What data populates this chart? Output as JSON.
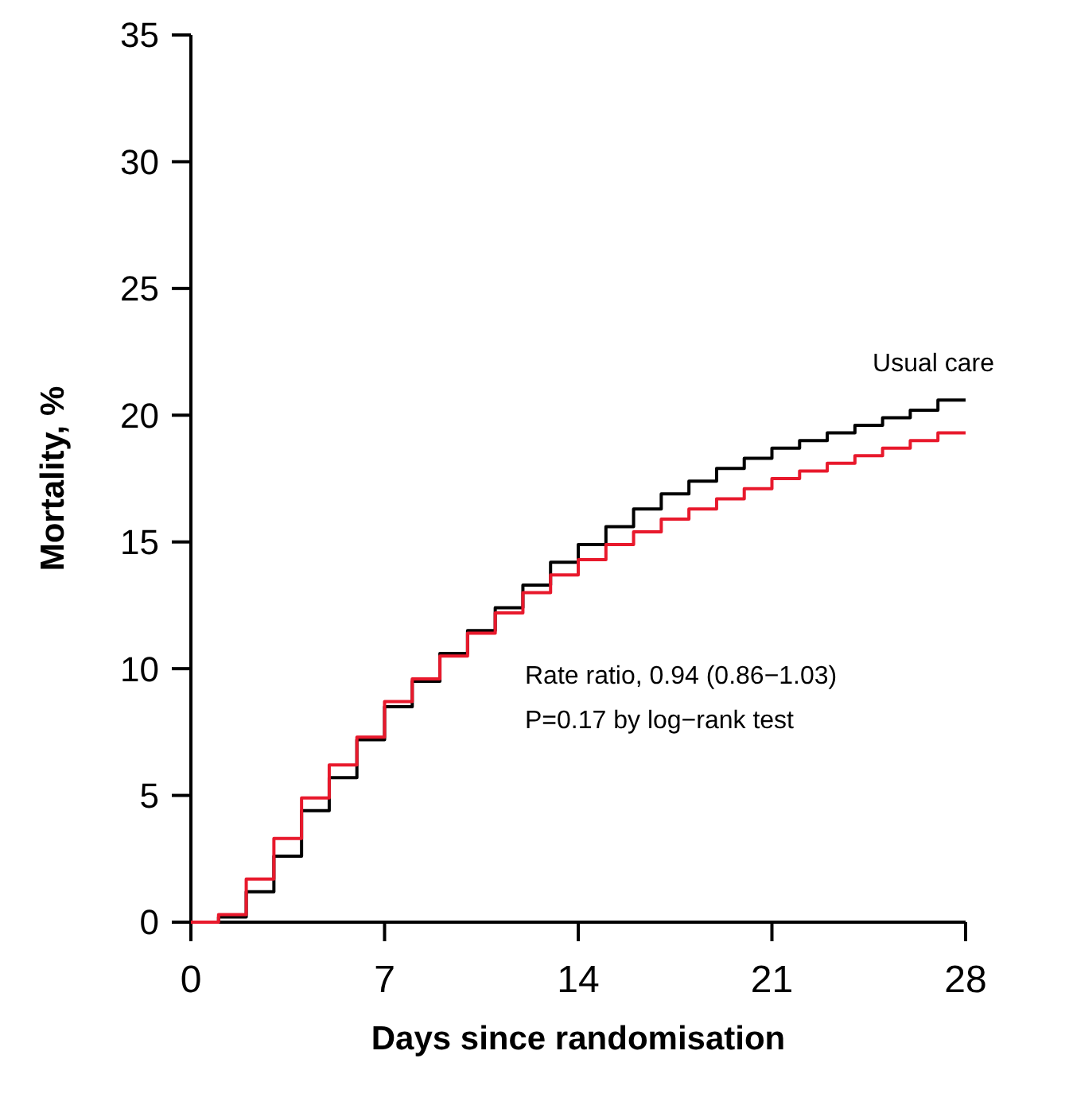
{
  "chart_data": {
    "type": "step",
    "xlabel": "Days since randomisation",
    "ylabel": "Mortality, %",
    "xlim": [
      0,
      28
    ],
    "ylim": [
      0,
      35
    ],
    "xticks": [
      0,
      7,
      14,
      21,
      28
    ],
    "yticks": [
      0,
      5,
      10,
      15,
      20,
      25,
      30,
      35
    ],
    "grid": false,
    "annotations": [
      "Rate ratio, 0.94 (0.86−1.03)",
      "P=0.17 by log−rank test"
    ],
    "series": [
      {
        "name": "Usual care",
        "color": "#000000",
        "x": [
          0,
          1,
          2,
          3,
          4,
          5,
          6,
          7,
          8,
          9,
          10,
          11,
          12,
          13,
          14,
          15,
          16,
          17,
          18,
          19,
          20,
          21,
          22,
          23,
          24,
          25,
          26,
          27,
          28
        ],
        "values": [
          0,
          0.2,
          1.2,
          2.6,
          4.4,
          5.7,
          7.2,
          8.5,
          9.5,
          10.6,
          11.5,
          12.4,
          13.3,
          14.2,
          14.9,
          15.6,
          16.3,
          16.9,
          17.4,
          17.9,
          18.3,
          18.7,
          19.0,
          19.3,
          19.6,
          19.9,
          20.2,
          20.6,
          20.6
        ]
      },
      {
        "color": "#e8192c",
        "x": [
          0,
          1,
          2,
          3,
          4,
          5,
          6,
          7,
          8,
          9,
          10,
          11,
          12,
          13,
          14,
          15,
          16,
          17,
          18,
          19,
          20,
          21,
          22,
          23,
          24,
          25,
          26,
          27,
          28
        ],
        "values": [
          0,
          0.3,
          1.7,
          3.3,
          4.9,
          6.2,
          7.3,
          8.7,
          9.6,
          10.5,
          11.4,
          12.2,
          13.0,
          13.7,
          14.3,
          14.9,
          15.4,
          15.9,
          16.3,
          16.7,
          17.1,
          17.5,
          17.8,
          18.1,
          18.4,
          18.7,
          19.0,
          19.3,
          19.3
        ]
      }
    ]
  }
}
